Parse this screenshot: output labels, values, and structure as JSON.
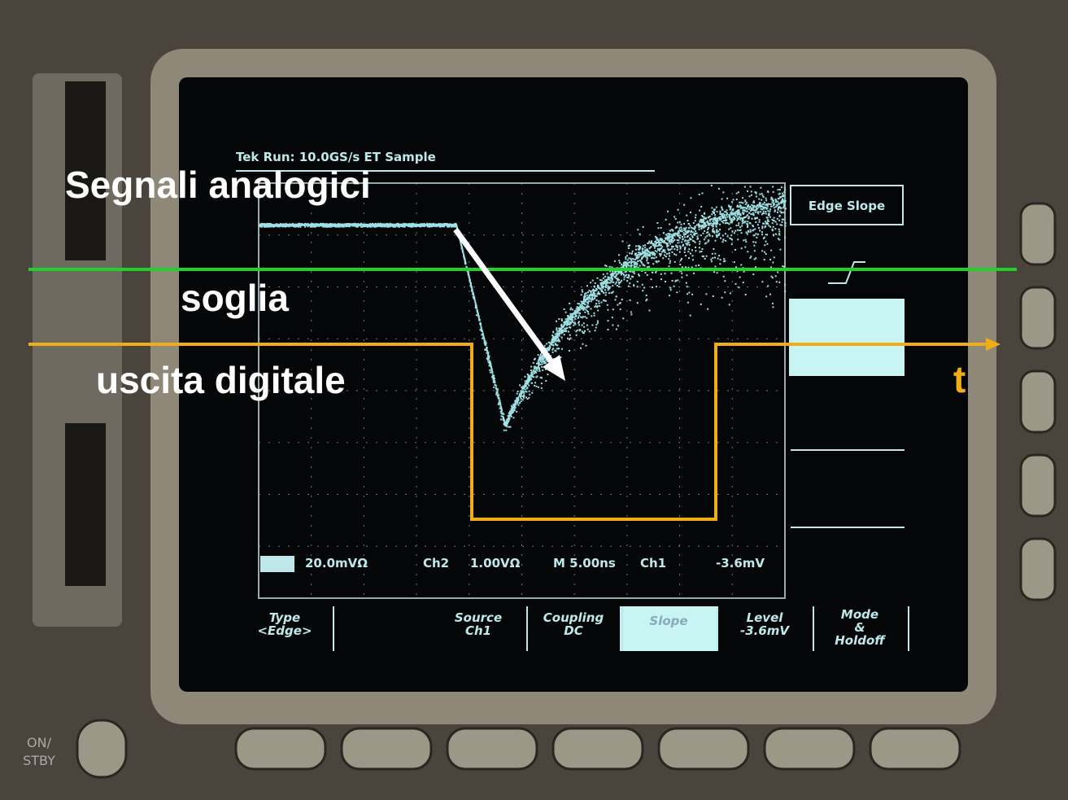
{
  "annotations": {
    "analog": "Segnali analogici",
    "threshold": "soglia",
    "digital": "uscita digitale",
    "time": "t"
  },
  "scope": {
    "header": "Tek Run: 10.0GS/s ET Sample",
    "side_title": "Edge Slope",
    "readout": [
      "20.0mVΩ",
      "Ch2",
      "1.00VΩ",
      "M 5.00ns",
      "Ch1",
      "-3.6mV"
    ],
    "menu": [
      [
        "Type",
        "<Edge>"
      ],
      [
        "Source",
        "Ch1"
      ],
      [
        "Coupling",
        "DC"
      ],
      [
        "Slope"
      ],
      [
        "Level",
        "-3.6mV"
      ],
      [
        "Mode",
        "&",
        "Holdoff"
      ]
    ],
    "power": [
      "ON/",
      "STBY"
    ]
  }
}
